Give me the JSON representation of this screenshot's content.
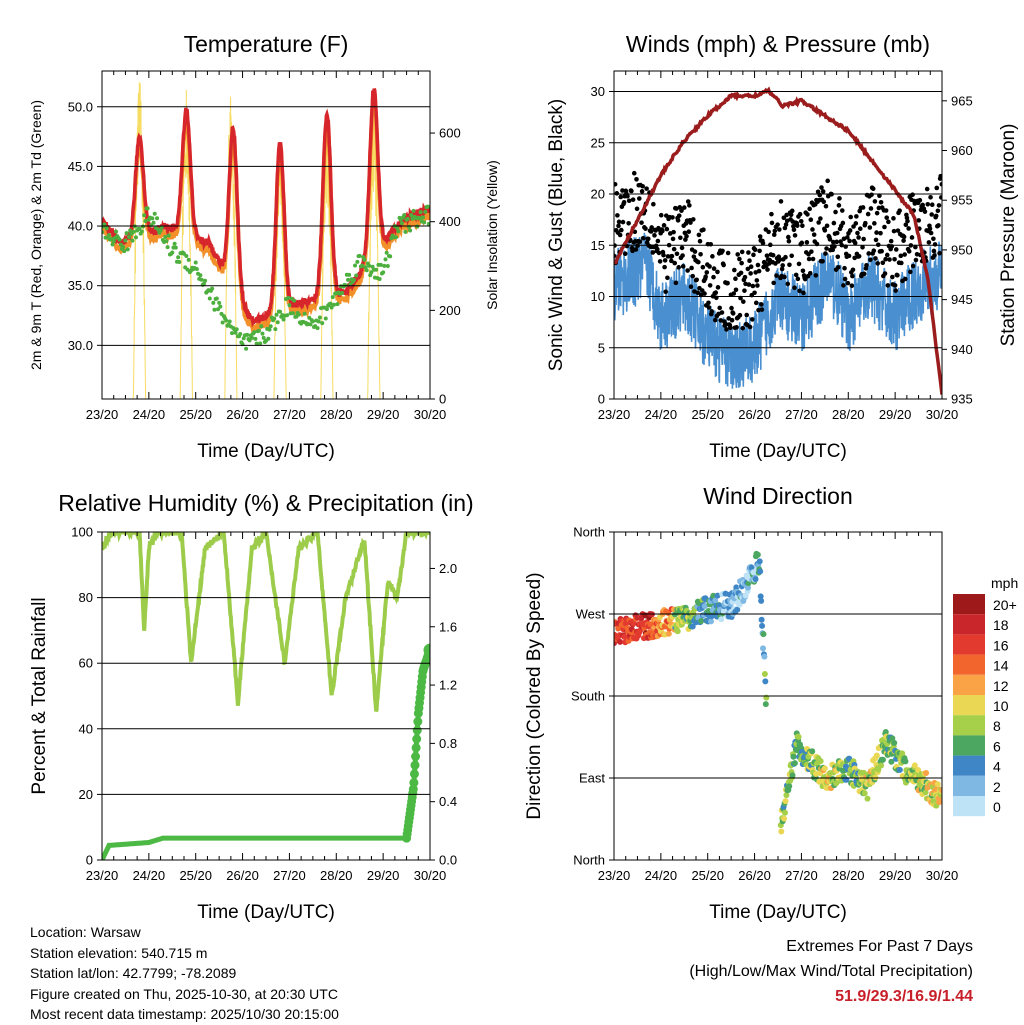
{
  "colors": {
    "temp_2m": "#d7262b",
    "temp_9m": "#f2912a",
    "dewpoint": "#4caf3e",
    "solar": "#f6dc62",
    "wind": "#4a90d0",
    "gust": "#000000",
    "pressure": "#9b1c1c",
    "rh": "#9ccc4a",
    "precip": "#4cb944",
    "grid": "#000000"
  },
  "x_ticks": [
    "23/20",
    "24/20",
    "25/20",
    "26/20",
    "27/20",
    "28/20",
    "29/20",
    "30/20"
  ],
  "x_label": "Time (Day/UTC)",
  "chart_data": [
    {
      "id": "temperature",
      "type": "line",
      "title": "Temperature (F)",
      "xlabel": "Time (Day/UTC)",
      "ylabel": "2m & 9m T (Red, Orange) & 2m Td (Green)",
      "ylabel_right": "Solar Insolation (Yellow)",
      "ylim": [
        25.5,
        53
      ],
      "ylim_right": [
        0,
        740
      ],
      "yticks": [
        "30.0",
        "35.0",
        "40.0",
        "45.0",
        "50.0"
      ],
      "yticks_right": [
        "0",
        "200",
        "400",
        "600"
      ],
      "temp_peaks": [
        [
          0.8,
          47.5
        ],
        [
          1.8,
          49.8
        ],
        [
          2.8,
          48.3
        ],
        [
          3.8,
          47.0
        ],
        [
          4.8,
          49.5
        ],
        [
          5.8,
          51.5
        ]
      ],
      "temp_lows": [
        [
          0.0,
          40.5
        ],
        [
          0.4,
          38.5
        ],
        [
          1.35,
          40.0
        ],
        [
          2.3,
          38.5
        ],
        [
          3.2,
          32.0
        ],
        [
          4.2,
          33.5
        ],
        [
          5.2,
          34.5
        ],
        [
          6.4,
          40.5
        ],
        [
          7.0,
          41.5
        ]
      ],
      "dewpoint_keypoints": [
        [
          0,
          39.5
        ],
        [
          0.5,
          38.5
        ],
        [
          1,
          41
        ],
        [
          1.5,
          38
        ],
        [
          2,
          36.5
        ],
        [
          2.5,
          33
        ],
        [
          3,
          30
        ],
        [
          3.5,
          31
        ],
        [
          4,
          33.5
        ],
        [
          4.5,
          31.5
        ],
        [
          5,
          34
        ],
        [
          5.5,
          37
        ],
        [
          6,
          36
        ],
        [
          6.3,
          40
        ],
        [
          7,
          41
        ]
      ],
      "solar_peaks": [
        [
          0.8,
          740
        ],
        [
          1.8,
          705
        ],
        [
          2.75,
          690
        ],
        [
          3.8,
          590
        ],
        [
          4.8,
          620
        ],
        [
          5.8,
          665
        ]
      ]
    },
    {
      "id": "winds",
      "type": "scatter",
      "title": "Winds (mph) & Pressure (mb)",
      "xlabel": "Time (Day/UTC)",
      "ylabel": "Sonic Wind & Gust (Blue, Black)",
      "ylabel_right": "Station Pressure (Maroon)",
      "ylim": [
        0,
        32
      ],
      "ylim_right": [
        935,
        968
      ],
      "yticks": [
        "0",
        "5",
        "10",
        "15",
        "20",
        "25",
        "30"
      ],
      "yticks_right": [
        "935",
        "940",
        "945",
        "950",
        "955",
        "960",
        "965"
      ],
      "pressure_keypoints": [
        [
          0,
          948.5
        ],
        [
          0.5,
          953
        ],
        [
          1,
          957.5
        ],
        [
          1.5,
          961
        ],
        [
          2,
          963.5
        ],
        [
          2.5,
          965.5
        ],
        [
          3,
          965.5
        ],
        [
          3.3,
          966
        ],
        [
          3.6,
          964.5
        ],
        [
          4,
          965
        ],
        [
          4.5,
          963.5
        ],
        [
          5,
          962
        ],
        [
          5.5,
          959
        ],
        [
          6,
          956
        ],
        [
          6.4,
          953.5
        ],
        [
          6.7,
          947
        ],
        [
          7,
          935.5
        ]
      ],
      "wind_keypoints": [
        [
          0,
          11
        ],
        [
          0.3,
          12
        ],
        [
          0.7,
          13
        ],
        [
          1,
          8
        ],
        [
          1.5,
          10
        ],
        [
          2,
          6
        ],
        [
          2.5,
          4
        ],
        [
          3,
          5
        ],
        [
          3.5,
          10
        ],
        [
          4,
          8
        ],
        [
          4.6,
          12
        ],
        [
          5,
          8
        ],
        [
          5.5,
          11
        ],
        [
          6,
          8
        ],
        [
          6.5,
          11
        ],
        [
          7,
          12
        ]
      ]
    },
    {
      "id": "humidity",
      "type": "line",
      "title": "Relative Humidity (%) & Precipitation (in)",
      "xlabel": "Time (Day/UTC)",
      "ylabel": "Percent & Total Rainfall",
      "ylim": [
        0,
        100
      ],
      "ylim_right": [
        0,
        2.25
      ],
      "yticks": [
        "0",
        "20",
        "40",
        "60",
        "80",
        "100"
      ],
      "yticks_right": [
        "0.0",
        "0.4",
        "0.8",
        "1.2",
        "1.6",
        "2.0"
      ],
      "rh_keypoints": [
        [
          0,
          95
        ],
        [
          0.2,
          100
        ],
        [
          0.8,
          100
        ],
        [
          0.9,
          70
        ],
        [
          1.0,
          95
        ],
        [
          1.2,
          100
        ],
        [
          1.7,
          100
        ],
        [
          1.9,
          60
        ],
        [
          2.2,
          95
        ],
        [
          2.6,
          100
        ],
        [
          2.9,
          48
        ],
        [
          3.2,
          95
        ],
        [
          3.5,
          100
        ],
        [
          3.9,
          60
        ],
        [
          4.2,
          95
        ],
        [
          4.6,
          100
        ],
        [
          4.9,
          50
        ],
        [
          5.2,
          80
        ],
        [
          5.6,
          98
        ],
        [
          5.85,
          45
        ],
        [
          6.1,
          85
        ],
        [
          6.3,
          80
        ],
        [
          6.5,
          100
        ],
        [
          7.0,
          100
        ]
      ],
      "precip_keypoints": [
        [
          0,
          0
        ],
        [
          0.15,
          0.1
        ],
        [
          1.0,
          0.12
        ],
        [
          1.3,
          0.15
        ],
        [
          6.5,
          0.15
        ],
        [
          6.65,
          0.5
        ],
        [
          6.75,
          1.0
        ],
        [
          6.85,
          1.3
        ],
        [
          7.0,
          1.44
        ]
      ]
    },
    {
      "id": "direction",
      "type": "scatter",
      "title": "Wind Direction",
      "xlabel": "Time (Day/UTC)",
      "ylabel": "Direction (Colored By Speed)",
      "ylim": [
        0,
        360
      ],
      "yticks": [
        "North",
        "East",
        "South",
        "West",
        "North"
      ],
      "legend_title": "mph",
      "legend_entries": [
        "20+",
        "18",
        "16",
        "14",
        "12",
        "10",
        "8",
        "6",
        "4",
        "2",
        "0"
      ],
      "legend_colors": [
        "#9e1a1a",
        "#c9262b",
        "#e33a30",
        "#f2662e",
        "#f9a346",
        "#ead854",
        "#a6cf4a",
        "#4ca760",
        "#3e86c6",
        "#7fb9e3",
        "#bfe3f6"
      ],
      "dir_keypoints": [
        [
          0,
          250
        ],
        [
          0.5,
          255
        ],
        [
          1,
          260
        ],
        [
          1.5,
          265
        ],
        [
          2,
          275
        ],
        [
          2.5,
          280
        ],
        [
          2.8,
          300
        ],
        [
          3.1,
          330
        ],
        [
          3.4,
          10
        ],
        [
          3.6,
          50
        ],
        [
          3.9,
          125
        ],
        [
          4.5,
          90
        ],
        [
          5,
          100
        ],
        [
          5.4,
          80
        ],
        [
          5.8,
          130
        ],
        [
          6.2,
          100
        ],
        [
          6.6,
          85
        ],
        [
          7,
          65
        ]
      ]
    }
  ],
  "station": {
    "location": "Location: Warsaw",
    "elevation": "Station elevation: 540.715 m",
    "latlon": "Station lat/lon: 42.7799; -78.2089",
    "created": "Figure created on Thu, 2025-10-30, at 20:30 UTC",
    "recent": "Most recent data timestamp: 2025/10/30 20:15:00"
  },
  "extremes": {
    "title": "Extremes For Past 7 Days",
    "subtitle": "(High/Low/Max Wind/Total Precipitation)",
    "values": "51.9/29.3/16.9/1.44"
  }
}
